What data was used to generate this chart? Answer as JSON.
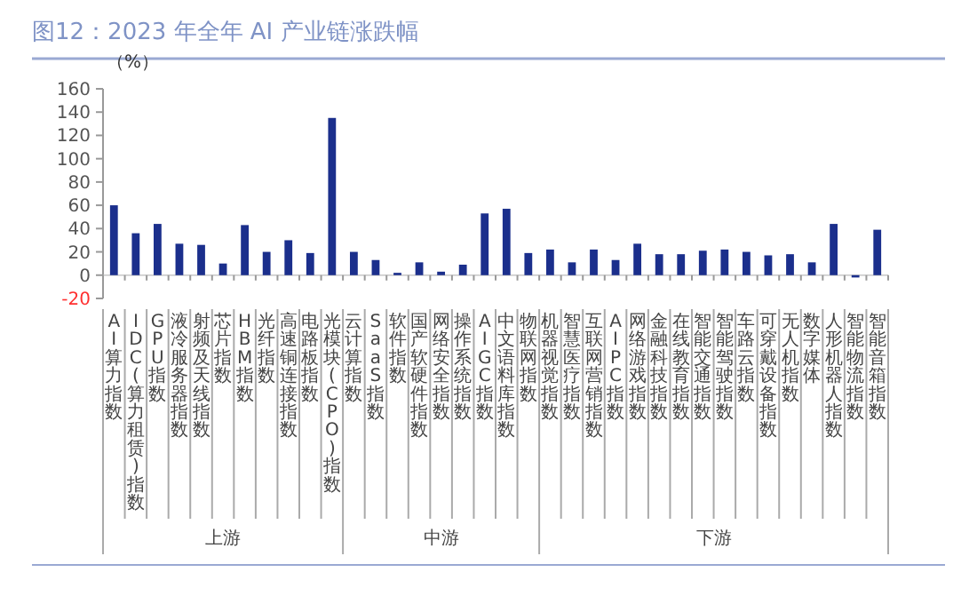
{
  "chart_data": {
    "type": "bar",
    "title": "图12：2023 年全年 AI 产业链涨跌幅",
    "ylabel": "（%）",
    "categories": [
      "AI算力指数",
      "IDC(算力租赁)指数",
      "GPU指数",
      "液冷服务器指数",
      "射频及天线指数",
      "芯片指数",
      "HBM指数",
      "光纤指数",
      "高速铜连接指数",
      "电路板指数",
      "光模块(CPO)指数",
      "云计算指数",
      "SaaS指数",
      "软件指数",
      "国产软硬件指数",
      "网络安全指数",
      "操作系统指数",
      "AIGC指数",
      "中文语料库指数",
      "物联网指数",
      "机器视觉指数",
      "智慧医疗指数",
      "互联网营销指数",
      "AIPC指数",
      "网络游戏指数",
      "金融科技指数",
      "在线教育指数",
      "智能交通指数",
      "智能驾驶指数",
      "车路云指数",
      "可穿戴设备指数",
      "无人机指数",
      "数字媒体",
      "人形机器人指数",
      "智能物流指数",
      "智能音箱指数"
    ],
    "values": [
      60,
      36,
      44,
      27,
      26,
      10,
      43,
      20,
      30,
      19,
      135,
      20,
      13,
      2,
      11,
      3,
      9,
      53,
      57,
      19,
      22,
      11,
      22,
      13,
      27,
      18,
      18,
      21,
      22,
      20,
      17,
      18,
      11,
      44,
      -2,
      39
    ],
    "color": "#1b2f8c",
    "ylim": [
      -20,
      160
    ],
    "yticks": [
      -20,
      0,
      20,
      40,
      60,
      80,
      100,
      120,
      140,
      160
    ],
    "annotations": [
      "上游",
      "中游",
      "下游"
    ]
  }
}
